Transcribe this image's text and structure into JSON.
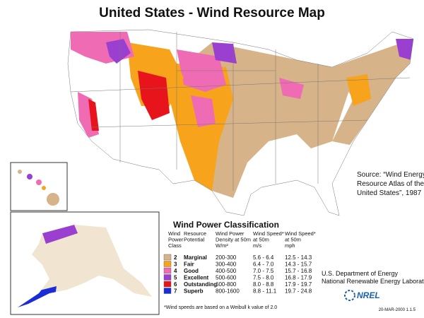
{
  "title": "United States - Wind Resource Map",
  "source": [
    "Source: “Wind Energy",
    "Resource Atlas of the",
    "United States”, 1987"
  ],
  "legend": {
    "title": "Wind Power Classification",
    "headers": [
      [
        "Wind",
        "Power",
        "Class"
      ],
      [
        "Resource",
        "Potential"
      ],
      [
        "Wind Power",
        "Density at 50m",
        "W/m²"
      ],
      [
        "Wind Speed*",
        "at 50m",
        "m/s"
      ],
      [
        "Wind Speed*",
        "at 50m",
        "mph"
      ]
    ],
    "rows": [
      {
        "color": "#d7b389",
        "class": 2,
        "potential": "Marginal",
        "density": "200-300",
        "speed_ms": "5.6 - 6.4",
        "speed_mph": "12.5 - 14.3"
      },
      {
        "color": "#f7a31c",
        "class": 3,
        "potential": "Fair",
        "density": "300-400",
        "speed_ms": "6.4 - 7.0",
        "speed_mph": "14.3 - 15.7"
      },
      {
        "color": "#ef6cb4",
        "class": 4,
        "potential": "Good",
        "density": "400-500",
        "speed_ms": "7.0 - 7.5",
        "speed_mph": "15.7 - 16.8"
      },
      {
        "color": "#9a3fcf",
        "class": 5,
        "potential": "Excellent",
        "density": "500-600",
        "speed_ms": "7.5 - 8.0",
        "speed_mph": "16.8 - 17.9"
      },
      {
        "color": "#e8141c",
        "class": 6,
        "potential": "Outstanding",
        "density": "600-800",
        "speed_ms": "8.0 - 8.8",
        "speed_mph": "17.9 - 19.7"
      },
      {
        "color": "#1a2cd8",
        "class": 7,
        "potential": "Superb",
        "density": "800-1600",
        "speed_ms": "8.8 - 11.1",
        "speed_mph": "19.7 - 24.8"
      }
    ],
    "footnote": "*Wind speeds are based on a Weibull k value of 2.0"
  },
  "credits": [
    "U.S. Department of Energy",
    "National Renewable Energy Laboratory"
  ],
  "logo": "NREL",
  "date_code": "20-MAR-2000 1.1.5"
}
